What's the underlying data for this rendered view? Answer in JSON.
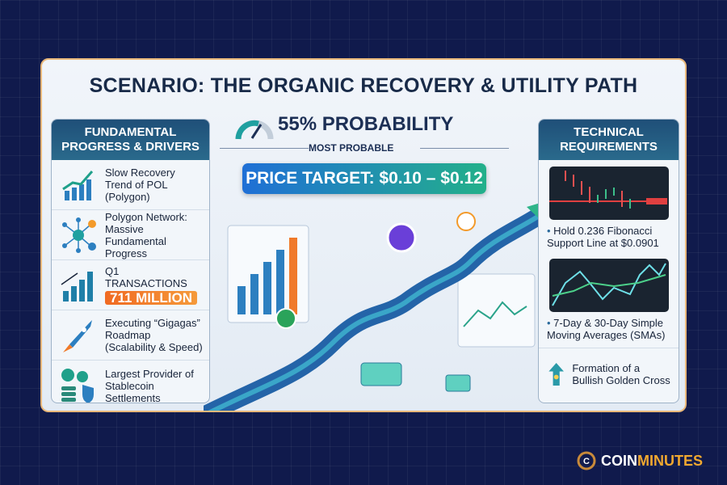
{
  "title": "SCENARIO: THE ORGANIC RECOVERY & UTILITY PATH",
  "probability": {
    "label": "55% PROBABILITY",
    "subtitle": "MOST PROBABLE",
    "gauge_level_percent": 55
  },
  "price_target": "PRICE TARGET: $0.10 – $0.12",
  "left_panel": {
    "title": "FUNDAMENTAL PROGRESS & DRIVERS",
    "items": [
      {
        "icon": "growth-chart-icon",
        "text": "Slow Recovery Trend of POL (Polygon)"
      },
      {
        "icon": "network-icon",
        "text": "Polygon Network: Massive Fundamental Progress"
      },
      {
        "icon": "bar-chart-icon",
        "text": "Q1 TRANSACTIONS",
        "badge": "711 MILLION"
      },
      {
        "icon": "rocket-icon",
        "text": "Executing “Gigagas” Roadmap (Scalability & Speed)"
      },
      {
        "icon": "stablecoin-shield-icon",
        "text": "Largest Provider of Stablecoin Settlements"
      }
    ]
  },
  "right_panel": {
    "title": "TECHNICAL REQUIREMENTS",
    "items": [
      {
        "text": "Hold 0.236 Fibonacci Support Line at $0.0901"
      },
      {
        "text": "7-Day & 30-Day Simple Moving Averages (SMAs)"
      },
      {
        "text": "Formation of a Bullish Golden Cross"
      }
    ]
  },
  "brand": {
    "part1": "COIN",
    "part2": "MINUTES",
    "color1": "#ffffff",
    "color2": "#f0a830"
  },
  "colors": {
    "background": "#101a4c",
    "accent_orange": "#f06a22",
    "header": "#1f4f78"
  }
}
